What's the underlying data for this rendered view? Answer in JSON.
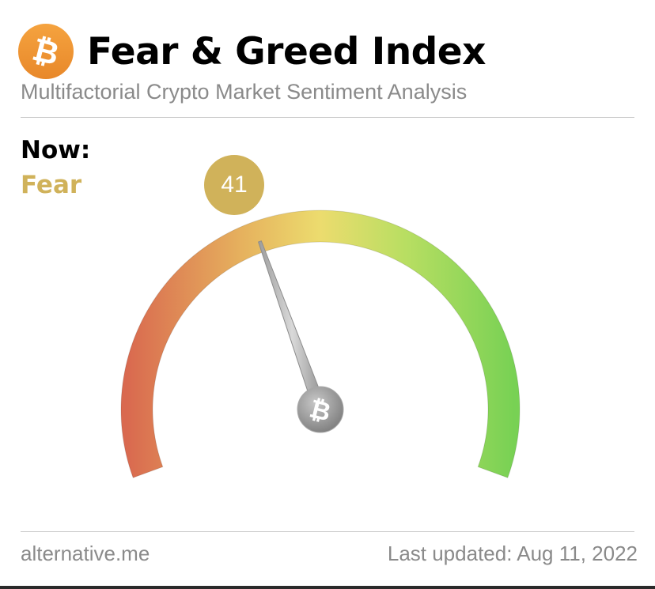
{
  "header": {
    "title": "Fear & Greed Index",
    "subtitle": "Multifactorial Crypto Market Sentiment Analysis",
    "logo_icon": "bitcoin-icon",
    "logo_color": "#f0922e"
  },
  "current": {
    "now_label": "Now:",
    "classification": "Fear",
    "value": "41",
    "classification_color": "#d0b25a"
  },
  "gauge": {
    "min": 0,
    "max": 100,
    "value": 41,
    "colors": {
      "low": "#d9694f",
      "fear": "#e6b25e",
      "neutral": "#ecdc6e",
      "greed": "#b8de62",
      "high": "#78d154"
    },
    "needle_hub_icon": "bitcoin-icon"
  },
  "footer": {
    "source": "alternative.me",
    "last_updated": "Last updated: Aug 11, 2022"
  }
}
